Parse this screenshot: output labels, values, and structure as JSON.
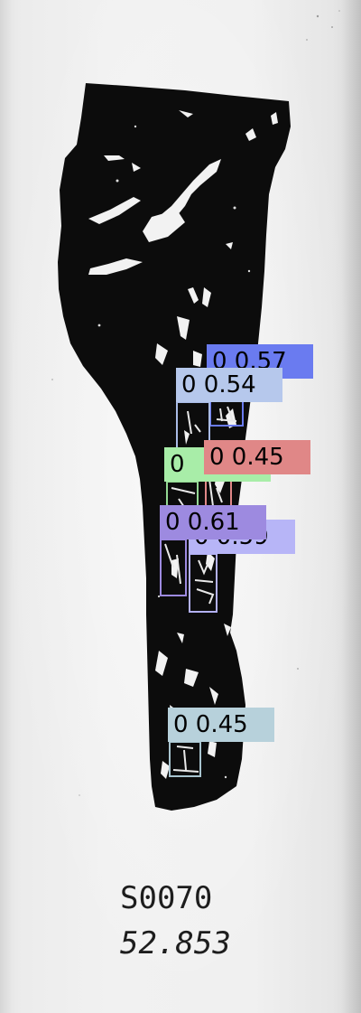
{
  "image": {
    "caption": {
      "code": "S0070",
      "number": "52.853"
    }
  },
  "detections": [
    {
      "label": "0 0.57",
      "color": "#6a7bf0",
      "outline": "#6a7bf0"
    },
    {
      "label": "0 0.54",
      "color": "#b6c8ec",
      "outline": "#a9bbe6"
    },
    {
      "label": "0",
      "color": "#a8eda8",
      "outline": "#93d893"
    },
    {
      "label": "0 0.45",
      "color": "#e08787",
      "outline": "#e08787"
    },
    {
      "label": "0 0.61",
      "color": "#9d8ae0",
      "outline": "#9d8ae0"
    },
    {
      "label": "0 0.59",
      "color": "#b7b5f7",
      "outline": "#b3b1f5"
    },
    {
      "label": "0 0.45",
      "color": "#b7d1db",
      "outline": "#a8c4cf"
    }
  ]
}
